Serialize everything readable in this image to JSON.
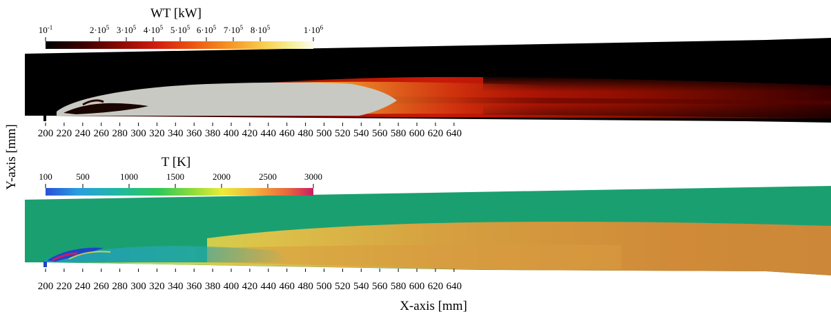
{
  "figure": {
    "x_axis_label": "X-axis [mm]",
    "y_axis_label": "Y-axis [mm]",
    "x_ticks": [
      "200",
      "220",
      "240",
      "260",
      "280",
      "300",
      "320",
      "340",
      "360",
      "380",
      "400",
      "420",
      "440",
      "460",
      "480",
      "500",
      "520",
      "540",
      "560",
      "580",
      "600",
      "620",
      "640"
    ]
  },
  "panels": [
    {
      "field": "WT",
      "colorbar_title": "WT [kW]",
      "colorbar_ticks": [
        {
          "base": "10",
          "sup": "-1",
          "value": 0.1
        },
        {
          "base": "2·10",
          "sup": "5",
          "value": 200000
        },
        {
          "base": "3·10",
          "sup": "5",
          "value": 300000
        },
        {
          "base": "4·10",
          "sup": "5",
          "value": 400000
        },
        {
          "base": "5·10",
          "sup": "5",
          "value": 500000
        },
        {
          "base": "6·10",
          "sup": "5",
          "value": 600000
        },
        {
          "base": "7·10",
          "sup": "5",
          "value": 700000
        },
        {
          "base": "8·10",
          "sup": "5",
          "value": 800000
        },
        {
          "base": "1·10",
          "sup": "6",
          "value": 1000000
        }
      ],
      "colormap": [
        "#000000",
        "#3a0000",
        "#8c0a00",
        "#d41e10",
        "#ee5a10",
        "#f59a28",
        "#f8d050",
        "#f6f09a",
        "#fcfcf0"
      ]
    },
    {
      "field": "T",
      "colorbar_title": "T [K]",
      "colorbar_ticks": [
        {
          "base": "100",
          "sup": "",
          "value": 100
        },
        {
          "base": "500",
          "sup": "",
          "value": 500
        },
        {
          "base": "1000",
          "sup": "",
          "value": 1000
        },
        {
          "base": "1500",
          "sup": "",
          "value": 1500
        },
        {
          "base": "2000",
          "sup": "",
          "value": 2000
        },
        {
          "base": "2500",
          "sup": "",
          "value": 2500
        },
        {
          "base": "3000",
          "sup": "",
          "value": 3000
        }
      ],
      "colormap": [
        "#2a4fd8",
        "#2a9ee0",
        "#20b8a0",
        "#2cc85a",
        "#8edc3a",
        "#eaec3a",
        "#f3b03c",
        "#ea6a3c",
        "#c81e64"
      ]
    }
  ]
}
